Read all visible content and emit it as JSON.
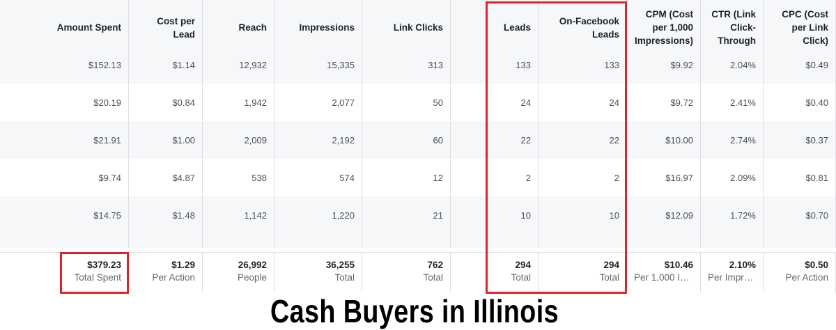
{
  "table": {
    "columns": [
      "Amount Spent",
      "Cost per Lead",
      "Reach",
      "Impressions",
      "Link Clicks",
      "Leads",
      "On-Facebook Leads",
      "CPM (Cost per 1,000 Impressions)",
      "CTR (Link Click-Through",
      "CPC (Cost per Link Click)"
    ],
    "rows": [
      [
        "$152.13",
        "$1.14",
        "12,932",
        "15,335",
        "313",
        "133",
        "133",
        "$9.92",
        "2.04%",
        "$0.49"
      ],
      [
        "$20.19",
        "$0.84",
        "1,942",
        "2,077",
        "50",
        "24",
        "24",
        "$9.72",
        "2.41%",
        "$0.40"
      ],
      [
        "$21.91",
        "$1.00",
        "2,009",
        "2,192",
        "60",
        "22",
        "22",
        "$10.00",
        "2.74%",
        "$0.37"
      ],
      [
        "$9.74",
        "$4.87",
        "538",
        "574",
        "12",
        "2",
        "2",
        "$16.97",
        "2.09%",
        "$0.81"
      ],
      [
        "$14.75",
        "$1.48",
        "1,142",
        "1,220",
        "21",
        "10",
        "10",
        "$12.09",
        "1.72%",
        "$0.70"
      ]
    ],
    "totals": [
      {
        "value": "$379.23",
        "label": "Total Spent"
      },
      {
        "value": "$1.29",
        "label": "Per Action"
      },
      {
        "value": "26,992",
        "label": "People"
      },
      {
        "value": "36,255",
        "label": "Total"
      },
      {
        "value": "762",
        "label": "Total"
      },
      {
        "value": "294",
        "label": "Total"
      },
      {
        "value": "294",
        "label": "Total"
      },
      {
        "value": "$10.46",
        "label": "Per 1,000 Im…"
      },
      {
        "value": "2.10%",
        "label": "Per Impre…"
      },
      {
        "value": "$0.50",
        "label": "Per Action"
      }
    ]
  },
  "title": "Cash Buyers in Illinois"
}
